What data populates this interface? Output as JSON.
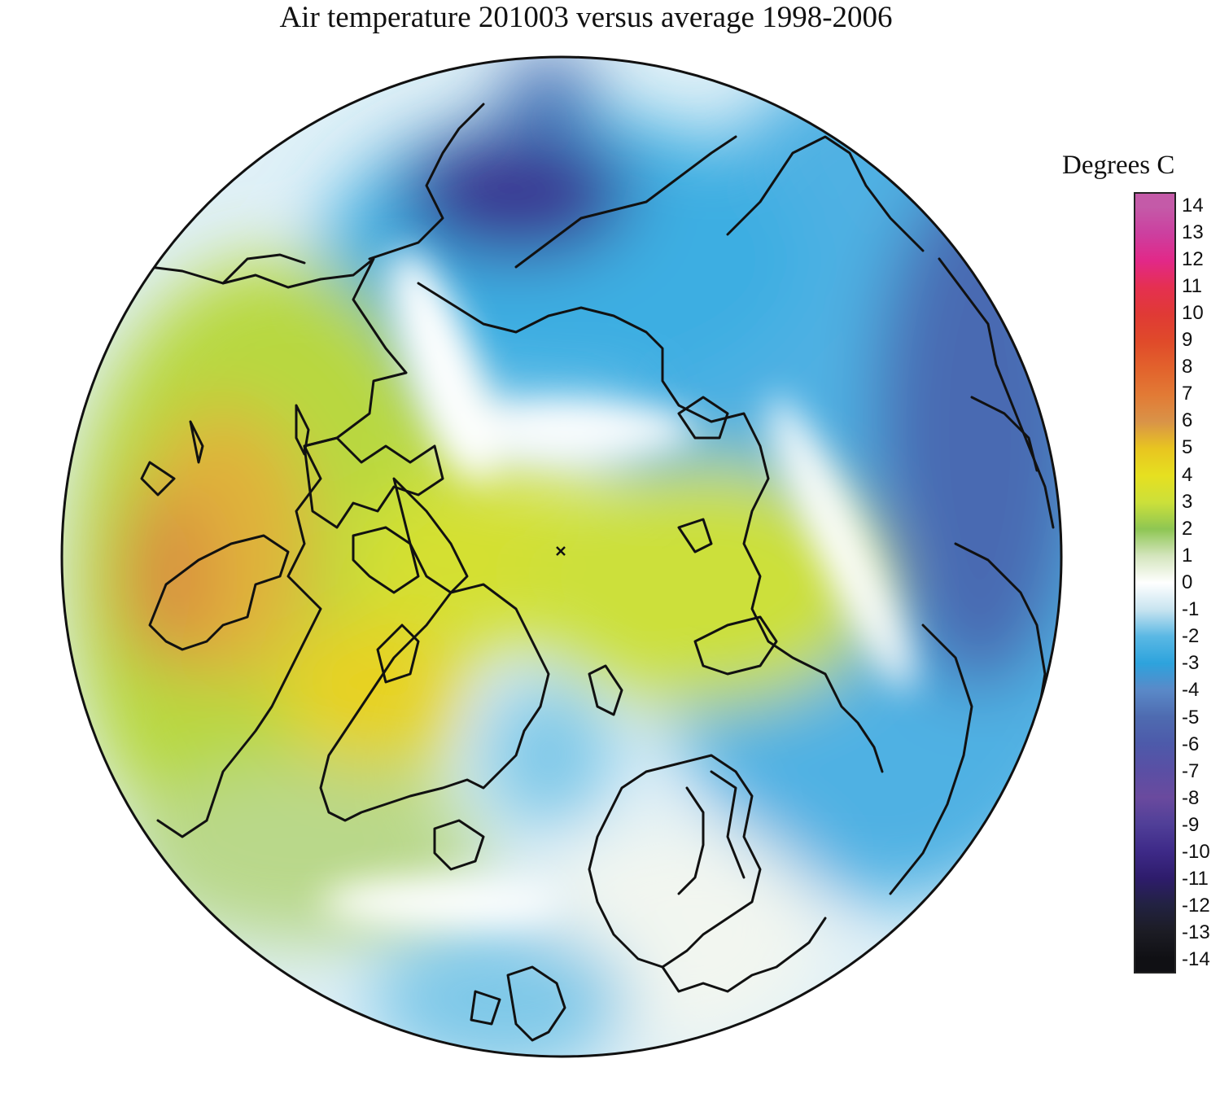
{
  "title": "Air temperature 201003 versus average 1998-2006",
  "legend": {
    "title": "Degrees C",
    "ticks": [
      "14",
      "13",
      "12",
      "11",
      "10",
      "9",
      "8",
      "7",
      "6",
      "5",
      "4",
      "3",
      "2",
      "1",
      "0",
      "-1",
      "-2",
      "-3",
      "-4",
      "-5",
      "-6",
      "-7",
      "-8",
      "-9",
      "-10",
      "-11",
      "-12",
      "-13",
      "-14"
    ],
    "colors": [
      "#c45aa8",
      "#cc3f9f",
      "#e22888",
      "#e53050",
      "#e03a35",
      "#e04a2a",
      "#e2622c",
      "#e27a35",
      "#d99348",
      "#e8c520",
      "#e6e020",
      "#cce03a",
      "#8ec653",
      "#d4e5bd",
      "#ffffff",
      "#c8e4f0",
      "#5ab8e4",
      "#2da3dd",
      "#5a89c8",
      "#4e6bb0",
      "#4d5aaa",
      "#5a4fa4",
      "#6a4a9e",
      "#503f98",
      "#3e2a88",
      "#2e1c6c",
      "#222242",
      "#1c1c24",
      "#101014"
    ]
  },
  "map": {
    "projection": "north-polar-stereographic",
    "field": "air-temperature-anomaly",
    "palette_colors": {
      "strong_warm": "#d9903f",
      "warm": "#e8d220",
      "mild_warm": "#b8d840",
      "slight_warm": "#8ec653",
      "faint_warm": "#d6e6c2",
      "neutral": "#ffffff",
      "faint_cool": "#c8e4f0",
      "cool": "#7ec8e8",
      "mid_cool": "#3caee2",
      "strong_cool": "#4a6ab2",
      "very_strong_cool": "#3a3592"
    }
  }
}
